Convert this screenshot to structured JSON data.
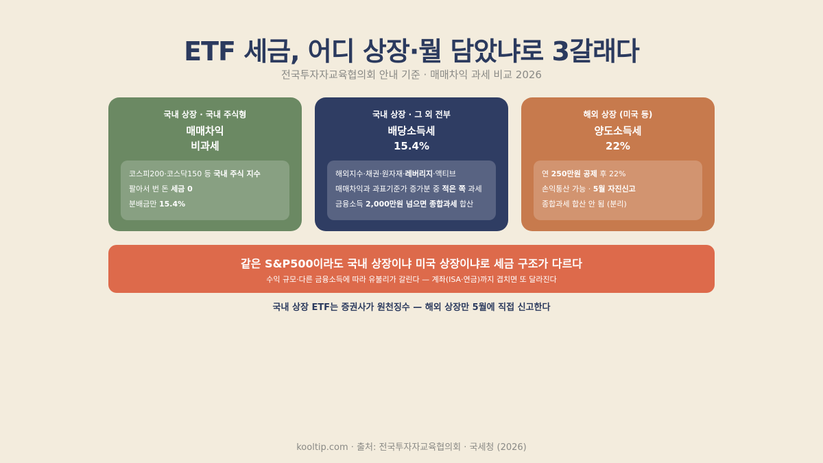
{
  "title": "ETF 세금, 어디 상장·뭘 담았냐로 3갈래다",
  "subtitle": "전국투자자교육협의회 안내 기준 · 매매차익 과세 비교 2026",
  "cards": [
    {
      "category": "국내 상장 · 국내 주식형",
      "type_line1": "매매차익",
      "type_line2": "비과세",
      "lines": [
        [
          {
            "t": "코스피200·코스닥150 등 ",
            "b": false
          },
          {
            "t": "국내 주식 지수",
            "b": true
          }
        ],
        [
          {
            "t": "팔아서 번 돈 ",
            "b": false
          },
          {
            "t": "세금 0",
            "b": true
          }
        ],
        [
          {
            "t": "분배금만 ",
            "b": false
          },
          {
            "t": "15.4%",
            "b": true
          }
        ]
      ],
      "color": "#6b8963"
    },
    {
      "category": "국내 상장 · 그 외 전부",
      "type_line1": "배당소득세",
      "type_line2": "15.4%",
      "lines": [
        [
          {
            "t": "해외지수·채권·원자재·",
            "b": false
          },
          {
            "t": "레버리지",
            "b": true
          },
          {
            "t": "·액티브",
            "b": false
          }
        ],
        [
          {
            "t": "매매차익과 과표기준가 증가분 중 ",
            "b": false
          },
          {
            "t": "적은 쪽",
            "b": true
          },
          {
            "t": " 과세",
            "b": false
          }
        ],
        [
          {
            "t": "금융소득 ",
            "b": false
          },
          {
            "t": "2,000만원 넘으면 종합과세",
            "b": true
          },
          {
            "t": " 합산",
            "b": false
          }
        ]
      ],
      "color": "#2f3d63"
    },
    {
      "category": "해외 상장 (미국 등)",
      "type_line1": "양도소득세",
      "type_line2": "22%",
      "lines": [
        [
          {
            "t": "연 ",
            "b": false
          },
          {
            "t": "250만원 공제",
            "b": true
          },
          {
            "t": " 후 22%",
            "b": false
          }
        ],
        [
          {
            "t": "손익통산 가능 · ",
            "b": false
          },
          {
            "t": "5월 자진신고",
            "b": true
          }
        ],
        [
          {
            "t": "종합과세 합산 안 됨 (분리)",
            "b": false
          }
        ]
      ],
      "color": "#c77a4d"
    }
  ],
  "banner": {
    "main": "같은 S&P500이라도 국내 상장이냐 미국 상장이냐로 세금 구조가 다르다",
    "sub": "수익 규모·다른 금융소득에 따라 유불리가 갈린다 — 계좌(ISA·연금)까지 겹치면 또 달라진다",
    "color": "#dd6a4b"
  },
  "note": "국내 상장 ETF는 증권사가 원천징수 — 해외 상장만 5월에 직접 신고한다",
  "footer": "kooltip.com · 출처: 전국투자자교육협의회 · 국세청 (2026)"
}
